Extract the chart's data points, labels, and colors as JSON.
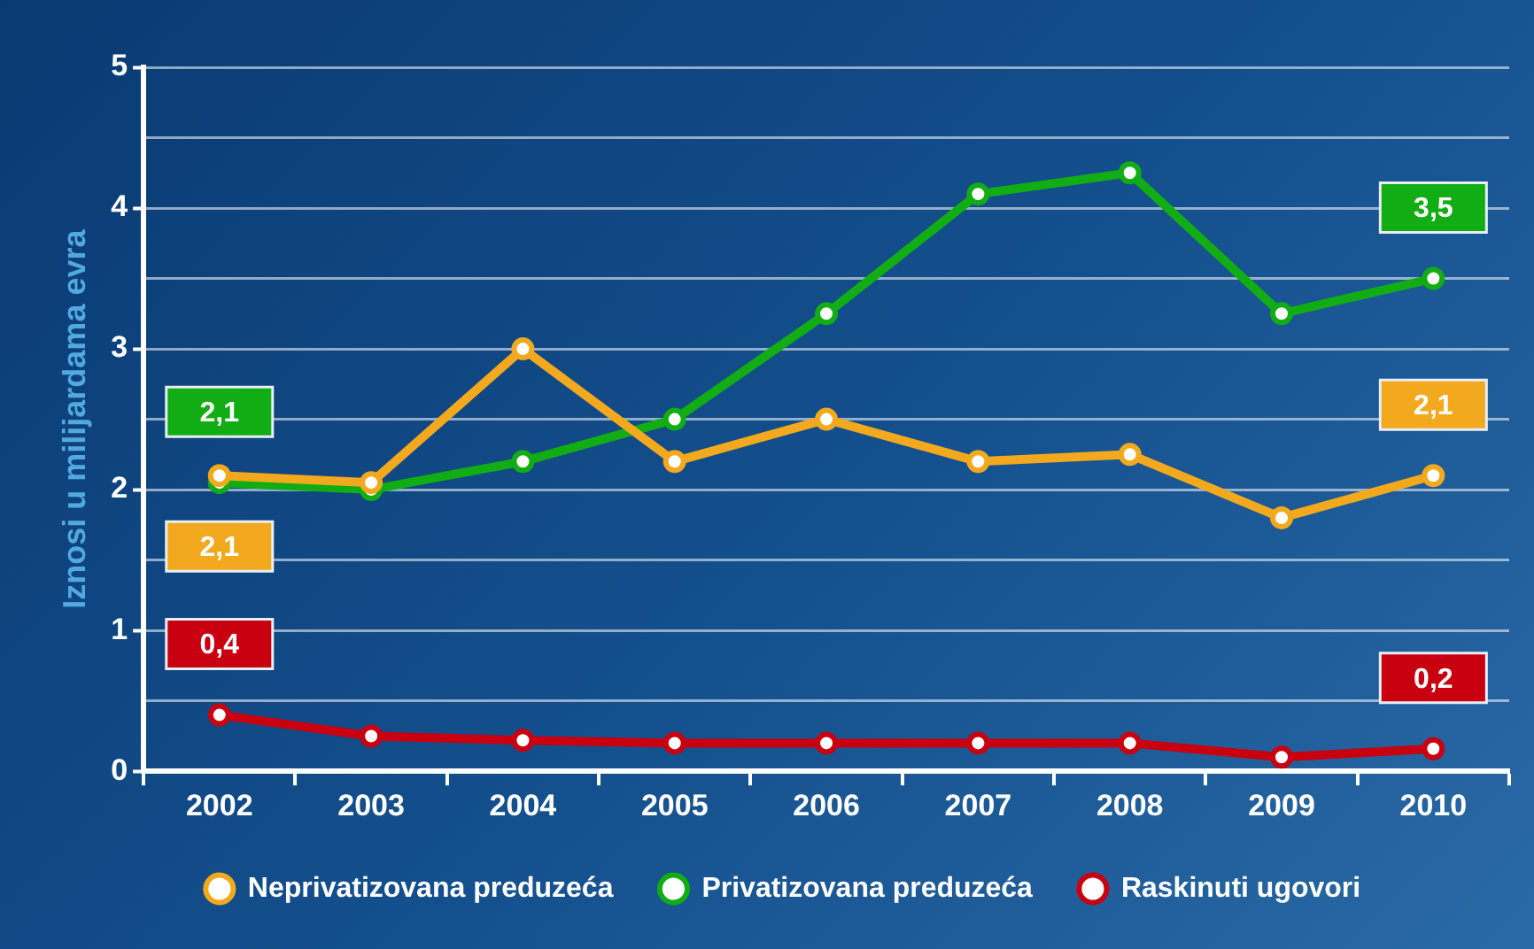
{
  "chart_data": {
    "type": "line",
    "ylabel": "Iznosi u milijardama evra",
    "categories": [
      "2002",
      "2003",
      "2004",
      "2005",
      "2006",
      "2007",
      "2008",
      "2009",
      "2010"
    ],
    "series": [
      {
        "name": "Neprivatizovana preduzeća",
        "color": "#f2a91e",
        "values": [
          2.1,
          2.05,
          3.0,
          2.2,
          2.5,
          2.2,
          2.25,
          1.8,
          2.1
        ],
        "value_labels": [
          "2,1",
          null,
          null,
          null,
          null,
          null,
          null,
          null,
          "2,1"
        ]
      },
      {
        "name": "Privatizovana preduzeća",
        "color": "#12ac14",
        "values": [
          2.05,
          2.0,
          2.2,
          2.5,
          3.25,
          4.1,
          4.25,
          3.25,
          3.5
        ],
        "value_labels": [
          "2,1",
          null,
          null,
          null,
          null,
          null,
          null,
          null,
          "3,5"
        ]
      },
      {
        "name": "Raskinuti ugovori",
        "color": "#c9000f",
        "values": [
          0.4,
          0.25,
          0.22,
          0.2,
          0.2,
          0.2,
          0.2,
          0.1,
          0.16
        ],
        "value_labels": [
          "0,4",
          null,
          null,
          null,
          null,
          null,
          null,
          null,
          "0,2"
        ]
      }
    ],
    "ylim": [
      0,
      5
    ],
    "yticks": [
      0,
      {
        "value": 0.5,
        "label": null
      },
      1,
      {
        "value": 1.5,
        "label": null
      },
      2,
      {
        "value": 2.5,
        "label": null
      },
      3,
      {
        "value": 3.5,
        "label": null
      },
      4,
      {
        "value": 4.5,
        "label": null
      },
      5
    ],
    "grid": "y",
    "legend": "bottom",
    "marker": "circle",
    "line_style": "solid"
  }
}
